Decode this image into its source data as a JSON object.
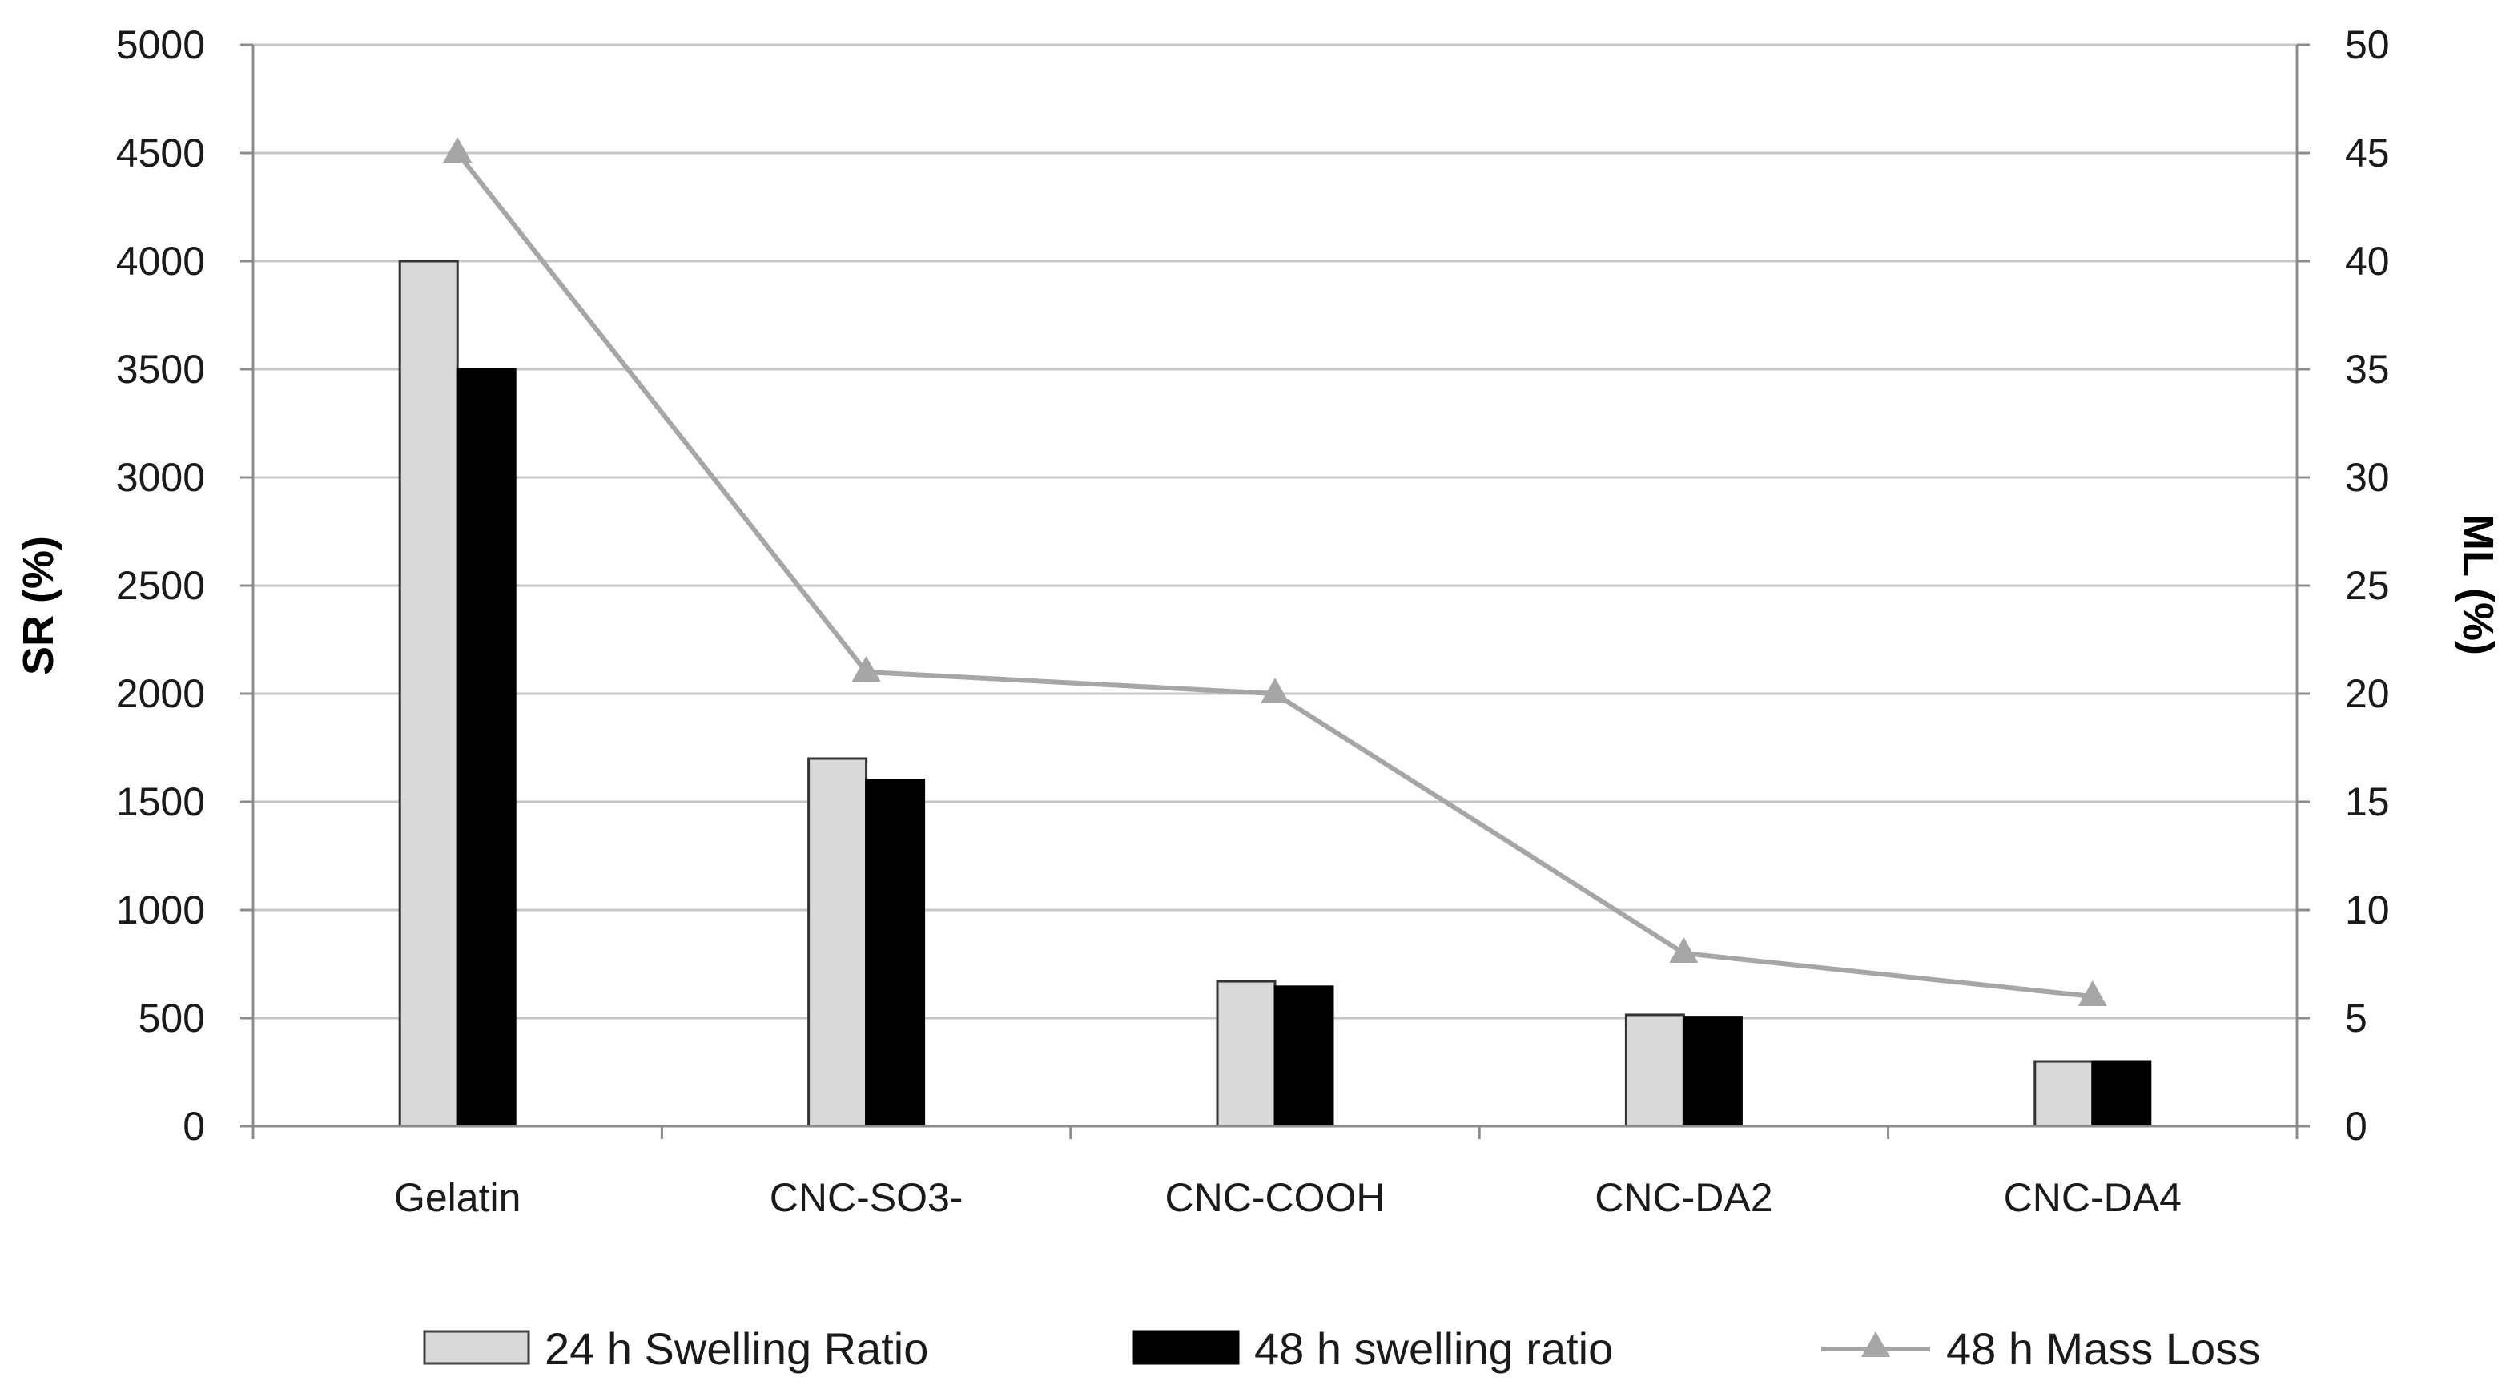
{
  "chart_data": {
    "type": "bar",
    "categories": [
      "Gelatin",
      "CNC-SO3-",
      "CNC-COOH",
      "CNC-DA2",
      "CNC-DA4"
    ],
    "series": [
      {
        "name": "24 h Swelling Ratio",
        "type": "bar",
        "axis": "left",
        "values": [
          4000,
          1700,
          670,
          515,
          300
        ],
        "color": "#d9d9d9"
      },
      {
        "name": "48 h swelling ratio",
        "type": "bar",
        "axis": "left",
        "values": [
          3500,
          1600,
          645,
          505,
          300
        ],
        "color": "#000000"
      },
      {
        "name": "48 h Mass Loss",
        "type": "line",
        "axis": "right",
        "marker": "triangle",
        "values": [
          45,
          21,
          20,
          8,
          6
        ],
        "color": "#a6a6a6"
      }
    ],
    "ylabel": "SR (%)",
    "y2label": "ML (%)",
    "ylim": [
      0,
      5000
    ],
    "y2lim": [
      0,
      50
    ],
    "yticks": [
      "0",
      "500",
      "1000",
      "1500",
      "2000",
      "2500",
      "3000",
      "3500",
      "4000",
      "4500",
      "5000"
    ],
    "y2ticks": [
      "0",
      "5",
      "10",
      "15",
      "20",
      "25",
      "30",
      "35",
      "40",
      "45",
      "50"
    ],
    "grid": true,
    "legend_position": "bottom"
  }
}
